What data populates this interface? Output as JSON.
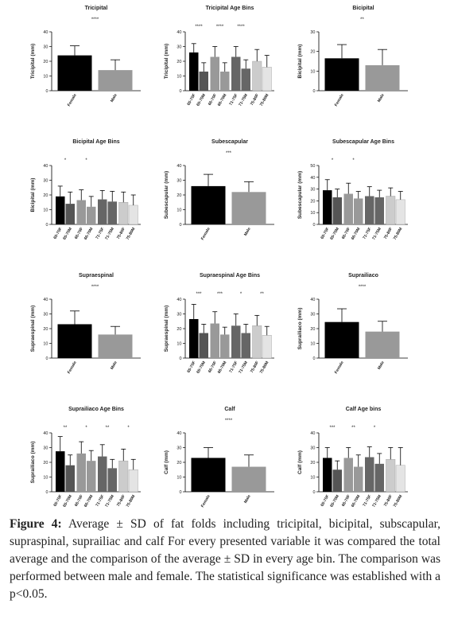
{
  "chart_data": [
    {
      "type": "bar",
      "title": "Tricipital",
      "ylabel": "Tricipital (mm)",
      "ylim": [
        0,
        40
      ],
      "yticks": [
        0,
        10,
        20,
        30,
        40
      ],
      "categories": [
        "Female",
        "Male"
      ],
      "values": [
        24,
        14
      ],
      "errors": [
        6.5,
        7
      ],
      "colors": [
        "#000000",
        "#999999"
      ],
      "annotations": [
        {
          "text": "****",
          "between": [
            0,
            1
          ]
        }
      ]
    },
    {
      "type": "bar",
      "title": "Tricipital Age Bins",
      "ylabel": "Tricipital (mm)",
      "ylim": [
        0,
        40
      ],
      "yticks": [
        0,
        10,
        20,
        30,
        40
      ],
      "categories": [
        "65-70F",
        "65-70M",
        "66-70F",
        "66-70M",
        "71-75F",
        "71-75M",
        "75-80F",
        "75-80M"
      ],
      "values": [
        26,
        13,
        23,
        13,
        23,
        15,
        20,
        16
      ],
      "errors": [
        6,
        6,
        7,
        6,
        7,
        6,
        8,
        8
      ],
      "colors": [
        "#000000",
        "#555555",
        "#999999",
        "#999999",
        "#666666",
        "#666666",
        "#cccccc",
        "#e4e4e4"
      ],
      "annotations": [
        {
          "text": "****",
          "between": [
            0,
            1
          ]
        },
        {
          "text": "****",
          "between": [
            2,
            3
          ]
        },
        {
          "text": "****",
          "between": [
            4,
            5
          ]
        }
      ]
    },
    {
      "type": "bar",
      "title": "Bicipital",
      "ylabel": "Bicipital (mm)",
      "ylim": [
        0,
        30
      ],
      "yticks": [
        0,
        10,
        20,
        30
      ],
      "categories": [
        "Female",
        "Male"
      ],
      "values": [
        16.5,
        13
      ],
      "errors": [
        7,
        8
      ],
      "colors": [
        "#000000",
        "#999999"
      ],
      "annotations": [
        {
          "text": "**",
          "between": [
            0,
            1
          ]
        }
      ]
    },
    {
      "type": "bar",
      "title": "Bicipital Age Bins",
      "ylabel": "Bicipital (mm)",
      "ylim": [
        0,
        40
      ],
      "yticks": [
        0,
        10,
        20,
        30,
        40
      ],
      "categories": [
        "65-70F",
        "65-70M",
        "66-70F",
        "66-70M",
        "71-75F",
        "71-75M",
        "75-80F",
        "75-80M"
      ],
      "values": [
        19,
        14,
        16.5,
        12,
        17,
        15.5,
        15,
        13
      ],
      "errors": [
        7,
        8,
        7,
        7,
        6,
        7,
        7,
        7
      ],
      "colors": [
        "#000000",
        "#555555",
        "#999999",
        "#999999",
        "#666666",
        "#666666",
        "#cccccc",
        "#e4e4e4"
      ],
      "annotations": [
        {
          "text": "*",
          "between": [
            0,
            1
          ]
        },
        {
          "text": "*",
          "between": [
            2,
            3
          ]
        }
      ]
    },
    {
      "type": "bar",
      "title": "Subescapular",
      "ylabel": "Subescapular (mm)",
      "ylim": [
        0,
        40
      ],
      "yticks": [
        0,
        10,
        20,
        30,
        40
      ],
      "categories": [
        "Female",
        "Male"
      ],
      "values": [
        26,
        22
      ],
      "errors": [
        8,
        7
      ],
      "colors": [
        "#000000",
        "#999999"
      ],
      "annotations": [
        {
          "text": "***",
          "between": [
            0,
            1
          ]
        }
      ]
    },
    {
      "type": "bar",
      "title": "Subescapular Age Bins",
      "ylabel": "Subescapular (mm)",
      "ylim": [
        0,
        50
      ],
      "yticks": [
        0,
        10,
        20,
        30,
        40,
        50
      ],
      "categories": [
        "65-70F",
        "65-70M",
        "66-70F",
        "66-70M",
        "71-75F",
        "71-75M",
        "75-80F",
        "75-80M"
      ],
      "values": [
        29,
        23,
        26,
        22,
        24,
        23,
        24,
        21
      ],
      "errors": [
        9,
        7,
        9,
        6,
        8,
        6,
        7,
        7
      ],
      "colors": [
        "#000000",
        "#555555",
        "#999999",
        "#999999",
        "#666666",
        "#666666",
        "#cccccc",
        "#e4e4e4"
      ],
      "annotations": [
        {
          "text": "*",
          "between": [
            0,
            1
          ]
        },
        {
          "text": "*",
          "between": [
            2,
            3
          ]
        }
      ]
    },
    {
      "type": "bar",
      "title": "Supraespinal",
      "ylabel": "Supraespinal (mm)",
      "ylim": [
        0,
        40
      ],
      "yticks": [
        0,
        10,
        20,
        30,
        40
      ],
      "categories": [
        "Female",
        "Male"
      ],
      "values": [
        23,
        16
      ],
      "errors": [
        9,
        5.5
      ],
      "colors": [
        "#000000",
        "#999999"
      ],
      "annotations": [
        {
          "text": "****",
          "between": [
            0,
            1
          ]
        }
      ]
    },
    {
      "type": "bar",
      "title": "Supraespinal Age Bins",
      "ylabel": "Supraespinal (mm)",
      "ylim": [
        0,
        40
      ],
      "yticks": [
        0,
        10,
        20,
        30,
        40
      ],
      "categories": [
        "65-70F",
        "65-70M",
        "66-70F",
        "66-70M",
        "71-75F",
        "71-75M",
        "75-80F",
        "75-80M"
      ],
      "values": [
        26.5,
        17,
        23.5,
        16,
        22,
        17,
        22,
        15.5
      ],
      "errors": [
        10,
        6,
        8,
        5,
        8,
        6,
        7,
        6
      ],
      "colors": [
        "#000000",
        "#555555",
        "#999999",
        "#999999",
        "#666666",
        "#666666",
        "#cccccc",
        "#e4e4e4"
      ],
      "annotations": [
        {
          "text": "***",
          "between": [
            0,
            1
          ]
        },
        {
          "text": "***",
          "between": [
            2,
            3
          ]
        },
        {
          "text": "*",
          "between": [
            4,
            5
          ]
        },
        {
          "text": "**",
          "between": [
            6,
            7
          ]
        }
      ]
    },
    {
      "type": "bar",
      "title": "Suprailiaco",
      "ylabel": "Suprailiaco (mm)",
      "ylim": [
        0,
        40
      ],
      "yticks": [
        0,
        10,
        20,
        30,
        40
      ],
      "categories": [
        "Female",
        "Male"
      ],
      "values": [
        24.5,
        18
      ],
      "errors": [
        9,
        7
      ],
      "colors": [
        "#000000",
        "#999999"
      ],
      "annotations": [
        {
          "text": "****",
          "between": [
            0,
            1
          ]
        }
      ]
    },
    {
      "type": "bar",
      "title": "Suprailiaco Age Bins",
      "ylabel": "Suprailiaco (mm)",
      "ylim": [
        0,
        40
      ],
      "yticks": [
        0,
        10,
        20,
        30,
        40
      ],
      "categories": [
        "65-70F",
        "65-70M",
        "66-70F",
        "66-70M",
        "71-75F",
        "71-75M",
        "75-80F",
        "75-80M"
      ],
      "values": [
        27.5,
        18,
        26,
        21,
        24,
        16,
        21,
        15
      ],
      "errors": [
        10,
        7,
        8,
        7,
        8,
        6,
        8,
        7
      ],
      "colors": [
        "#000000",
        "#555555",
        "#999999",
        "#999999",
        "#666666",
        "#666666",
        "#cccccc",
        "#e4e4e4"
      ],
      "annotations": [
        {
          "text": "**",
          "between": [
            0,
            1
          ]
        },
        {
          "text": "*",
          "between": [
            2,
            3
          ]
        },
        {
          "text": "**",
          "between": [
            4,
            5
          ]
        },
        {
          "text": "*",
          "between": [
            6,
            7
          ]
        }
      ]
    },
    {
      "type": "bar",
      "title": "Calf",
      "ylabel": "Calf (mm)",
      "ylim": [
        0,
        40
      ],
      "yticks": [
        0,
        10,
        20,
        30,
        40
      ],
      "categories": [
        "Female",
        "Male"
      ],
      "values": [
        23,
        17
      ],
      "errors": [
        7,
        8
      ],
      "colors": [
        "#000000",
        "#999999"
      ],
      "annotations": [
        {
          "text": "****",
          "between": [
            0,
            1
          ]
        }
      ]
    },
    {
      "type": "bar",
      "title": "Calf Age bins",
      "ylabel": "Calf (mm)",
      "ylim": [
        0,
        40
      ],
      "yticks": [
        0,
        10,
        20,
        30,
        40
      ],
      "categories": [
        "65-70F",
        "65-70M",
        "66-70F",
        "66-70M",
        "71-75F",
        "71-75M",
        "75-80F",
        "75-80M"
      ],
      "values": [
        23,
        15,
        23,
        17,
        23.5,
        19,
        22,
        18
      ],
      "errors": [
        7,
        6,
        7,
        8,
        7,
        7,
        8,
        12
      ],
      "colors": [
        "#000000",
        "#555555",
        "#999999",
        "#999999",
        "#666666",
        "#666666",
        "#cccccc",
        "#e4e4e4"
      ],
      "annotations": [
        {
          "text": "***",
          "between": [
            0,
            1
          ]
        },
        {
          "text": "**",
          "between": [
            2,
            3
          ]
        },
        {
          "text": "*",
          "between": [
            4,
            5
          ]
        }
      ]
    }
  ],
  "caption": {
    "label": "Figure 4:",
    "text": " Average ± SD of fat folds including tricipital, bicipital, subscapular, supraspinal, suprailiac and calf For every presented variable it was compared the total average and the comparison of the average ± SD in every age bin. The comparison was performed between male and female. The statistical significance was established with a p<0.05."
  }
}
